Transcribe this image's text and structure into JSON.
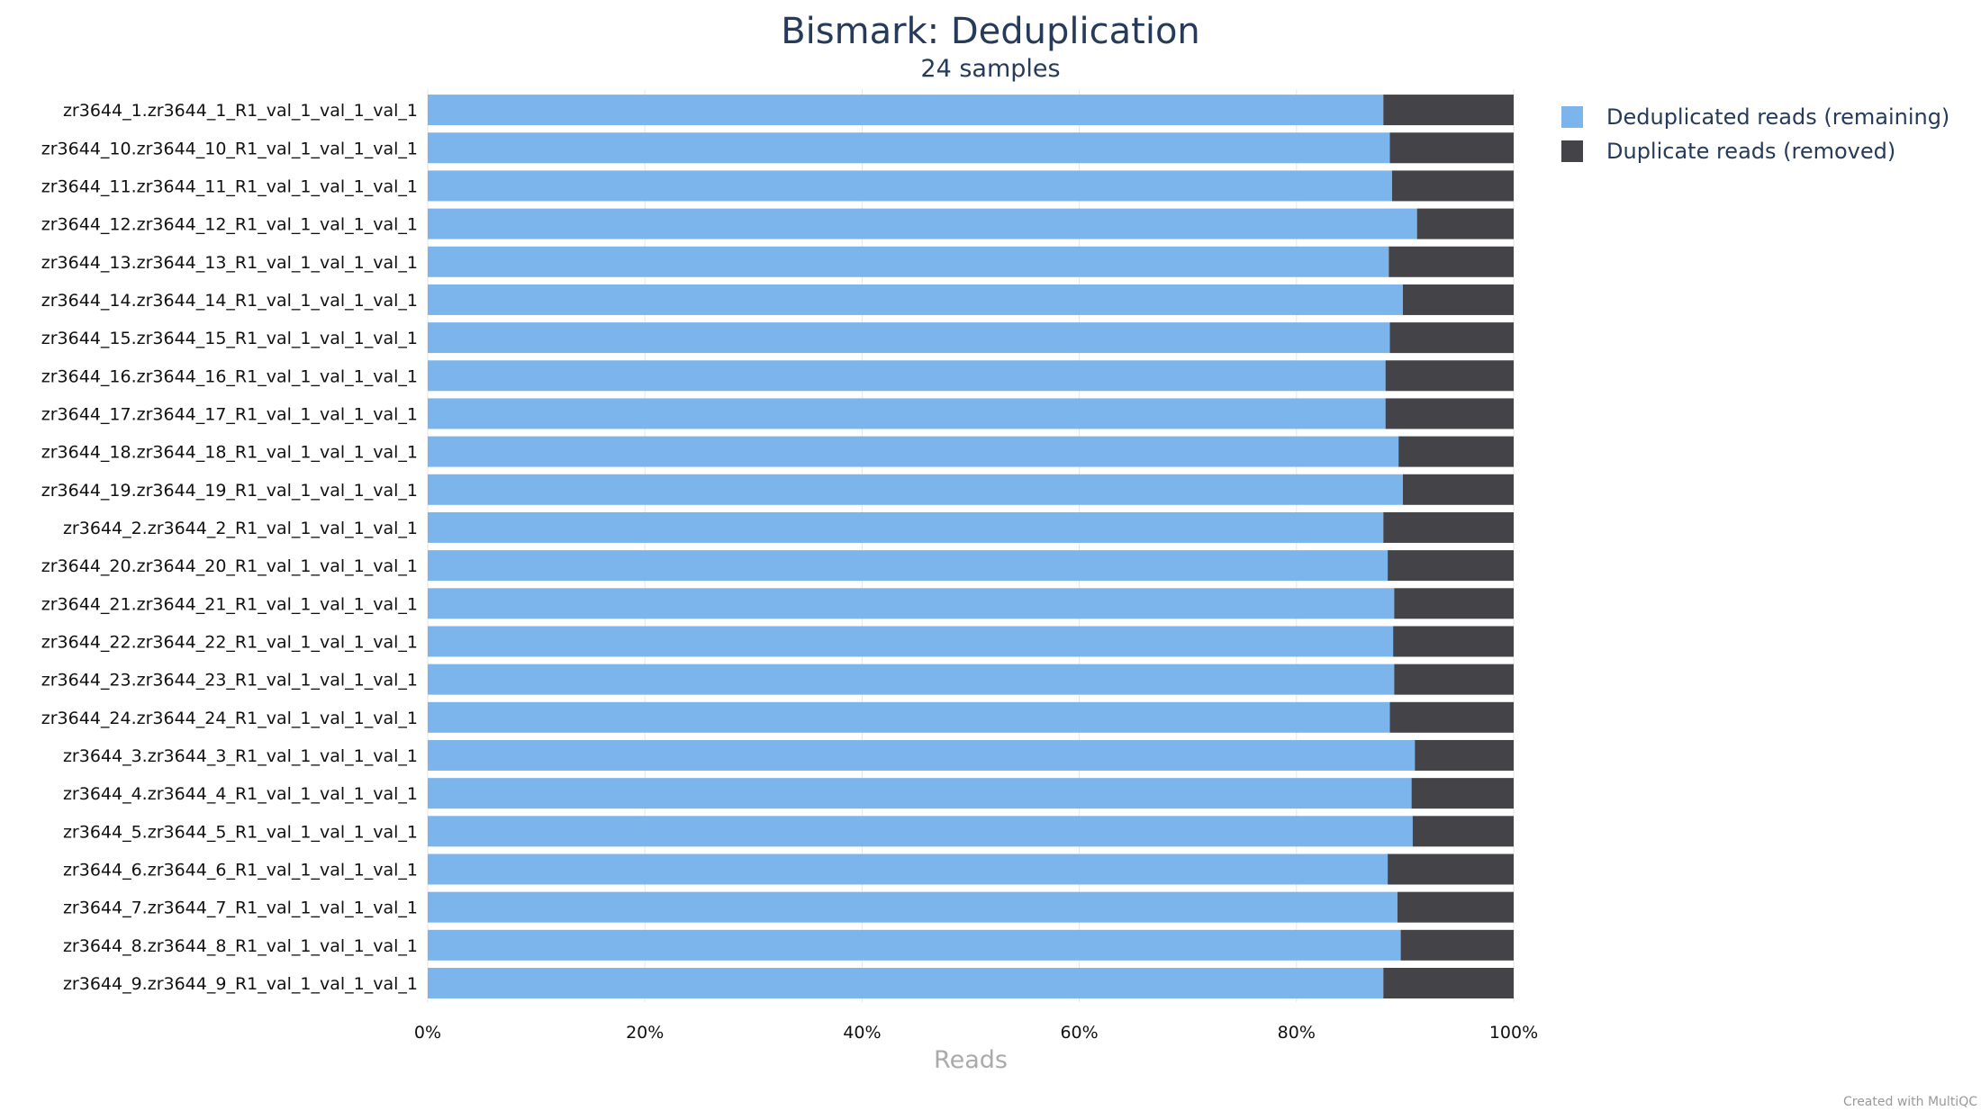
{
  "chart_data": {
    "type": "bar",
    "orientation": "horizontal",
    "stacked": true,
    "normalized": true,
    "title": "Bismark: Deduplication",
    "subtitle": "24 samples",
    "xlabel": "Reads",
    "ylabel": "",
    "xlim": [
      0,
      100
    ],
    "x_ticks": [
      "0%",
      "20%",
      "40%",
      "60%",
      "80%",
      "100%"
    ],
    "grid": true,
    "legend_position": "top-right",
    "categories": [
      "zr3644_1.zr3644_1_R1_val_1_val_1_val_1",
      "zr3644_10.zr3644_10_R1_val_1_val_1_val_1",
      "zr3644_11.zr3644_11_R1_val_1_val_1_val_1",
      "zr3644_12.zr3644_12_R1_val_1_val_1_val_1",
      "zr3644_13.zr3644_13_R1_val_1_val_1_val_1",
      "zr3644_14.zr3644_14_R1_val_1_val_1_val_1",
      "zr3644_15.zr3644_15_R1_val_1_val_1_val_1",
      "zr3644_16.zr3644_16_R1_val_1_val_1_val_1",
      "zr3644_17.zr3644_17_R1_val_1_val_1_val_1",
      "zr3644_18.zr3644_18_R1_val_1_val_1_val_1",
      "zr3644_19.zr3644_19_R1_val_1_val_1_val_1",
      "zr3644_2.zr3644_2_R1_val_1_val_1_val_1",
      "zr3644_20.zr3644_20_R1_val_1_val_1_val_1",
      "zr3644_21.zr3644_21_R1_val_1_val_1_val_1",
      "zr3644_22.zr3644_22_R1_val_1_val_1_val_1",
      "zr3644_23.zr3644_23_R1_val_1_val_1_val_1",
      "zr3644_24.zr3644_24_R1_val_1_val_1_val_1",
      "zr3644_3.zr3644_3_R1_val_1_val_1_val_1",
      "zr3644_4.zr3644_4_R1_val_1_val_1_val_1",
      "zr3644_5.zr3644_5_R1_val_1_val_1_val_1",
      "zr3644_6.zr3644_6_R1_val_1_val_1_val_1",
      "zr3644_7.zr3644_7_R1_val_1_val_1_val_1",
      "zr3644_8.zr3644_8_R1_val_1_val_1_val_1",
      "zr3644_9.zr3644_9_R1_val_1_val_1_val_1"
    ],
    "series": [
      {
        "name": "Deduplicated reads (remaining)",
        "color": "#7cb5ec",
        "values": [
          88.0,
          88.6,
          88.8,
          91.1,
          88.5,
          89.8,
          88.6,
          88.2,
          88.2,
          89.4,
          89.8,
          88.0,
          88.4,
          89.0,
          88.9,
          89.0,
          88.6,
          90.9,
          90.6,
          90.7,
          88.4,
          89.3,
          89.6,
          88.0
        ]
      },
      {
        "name": "Duplicate reads (removed)",
        "color": "#434348",
        "values": [
          12.0,
          11.4,
          11.2,
          8.9,
          11.5,
          10.2,
          11.4,
          11.8,
          11.8,
          10.6,
          10.2,
          12.0,
          11.6,
          11.0,
          11.1,
          11.0,
          11.4,
          9.1,
          9.4,
          9.3,
          11.6,
          10.7,
          10.4,
          12.0
        ]
      }
    ]
  },
  "credit": "Created with MultiQC",
  "colors": {
    "title": "#263b5a",
    "axis_label": "#aaaaaa",
    "tick_label": "#111111",
    "grid": "#e6e6e6"
  }
}
